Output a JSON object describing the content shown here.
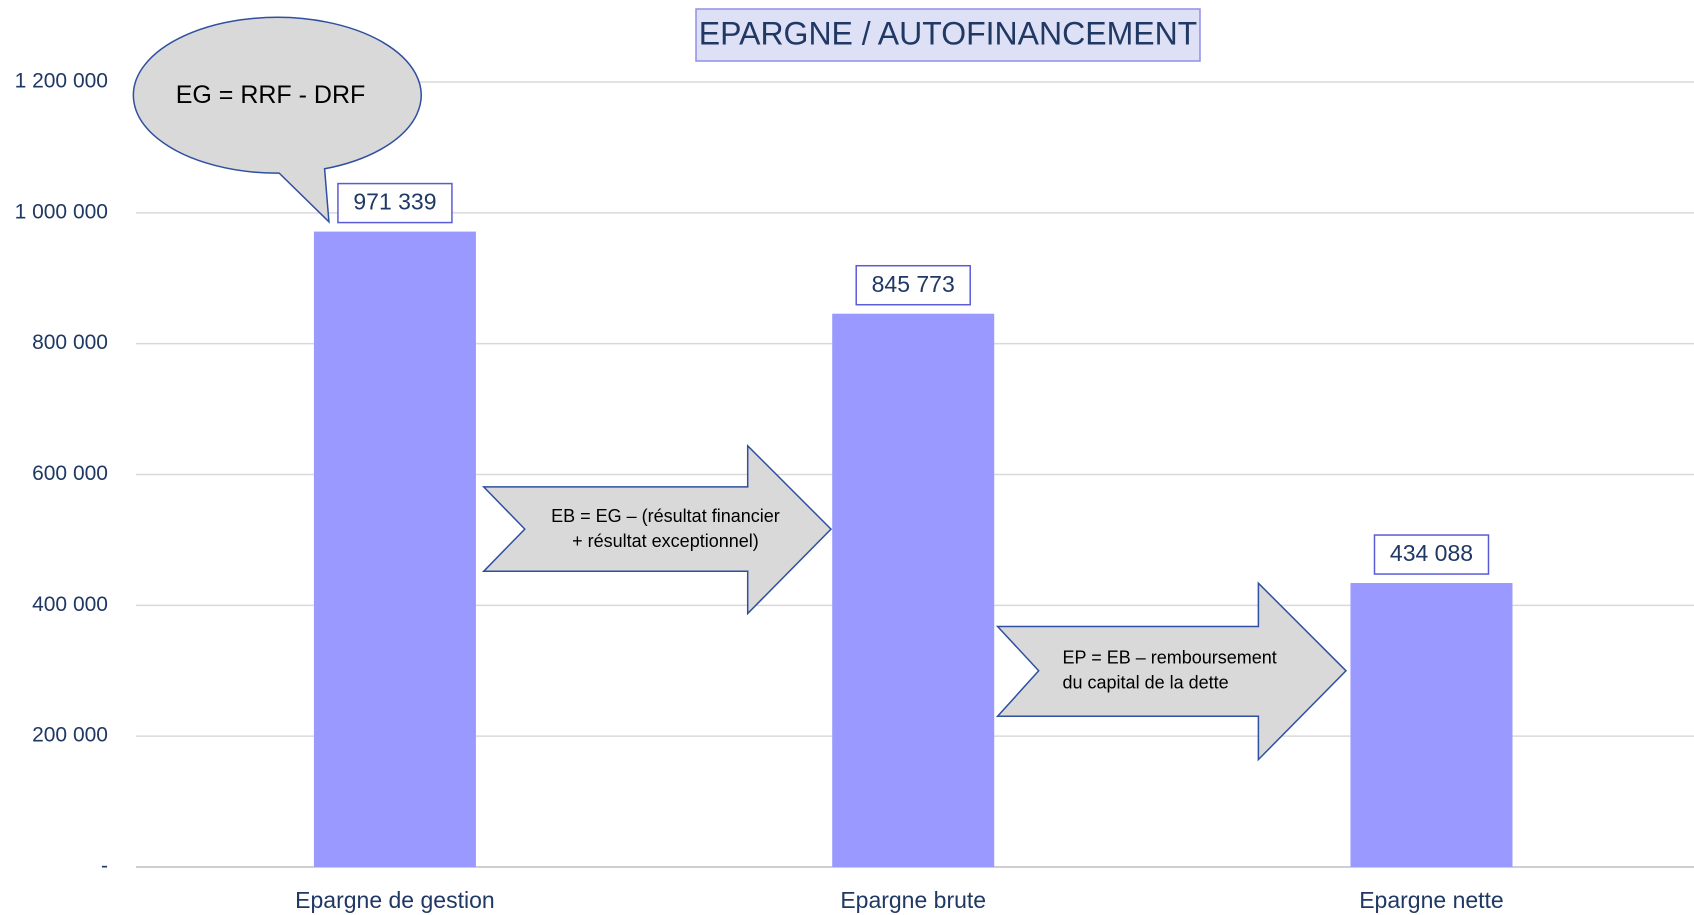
{
  "chart_data": {
    "type": "bar",
    "title": "EPARGNE / AUTOFINANCEMENT",
    "categories": [
      "Epargne de gestion",
      "Epargne brute",
      "Epargne nette"
    ],
    "values": [
      971339,
      845773,
      434088
    ],
    "value_labels": [
      "971 339",
      "845 773",
      "434 088"
    ],
    "color": "#9999ff",
    "ylim": [
      0,
      1200000
    ],
    "yticks": [
      {
        "value": 0,
        "label": "-"
      },
      {
        "value": 200000,
        "label": "200 000"
      },
      {
        "value": 400000,
        "label": "400 000"
      },
      {
        "value": 600000,
        "label": "600 000"
      },
      {
        "value": 800000,
        "label": "800 000"
      },
      {
        "value": 1000000,
        "label": "1 000 000"
      },
      {
        "value": 1200000,
        "label": "1 200 000"
      }
    ],
    "grid": true,
    "annotations": [
      {
        "lines": [
          "EG = RRF - DRF"
        ]
      },
      {
        "lines": [
          "EB = EG – (résultat financier",
          "+ résultat exceptionnel)"
        ]
      },
      {
        "lines": [
          "EP = EB – remboursement",
          "du capital de la dette"
        ]
      }
    ]
  }
}
